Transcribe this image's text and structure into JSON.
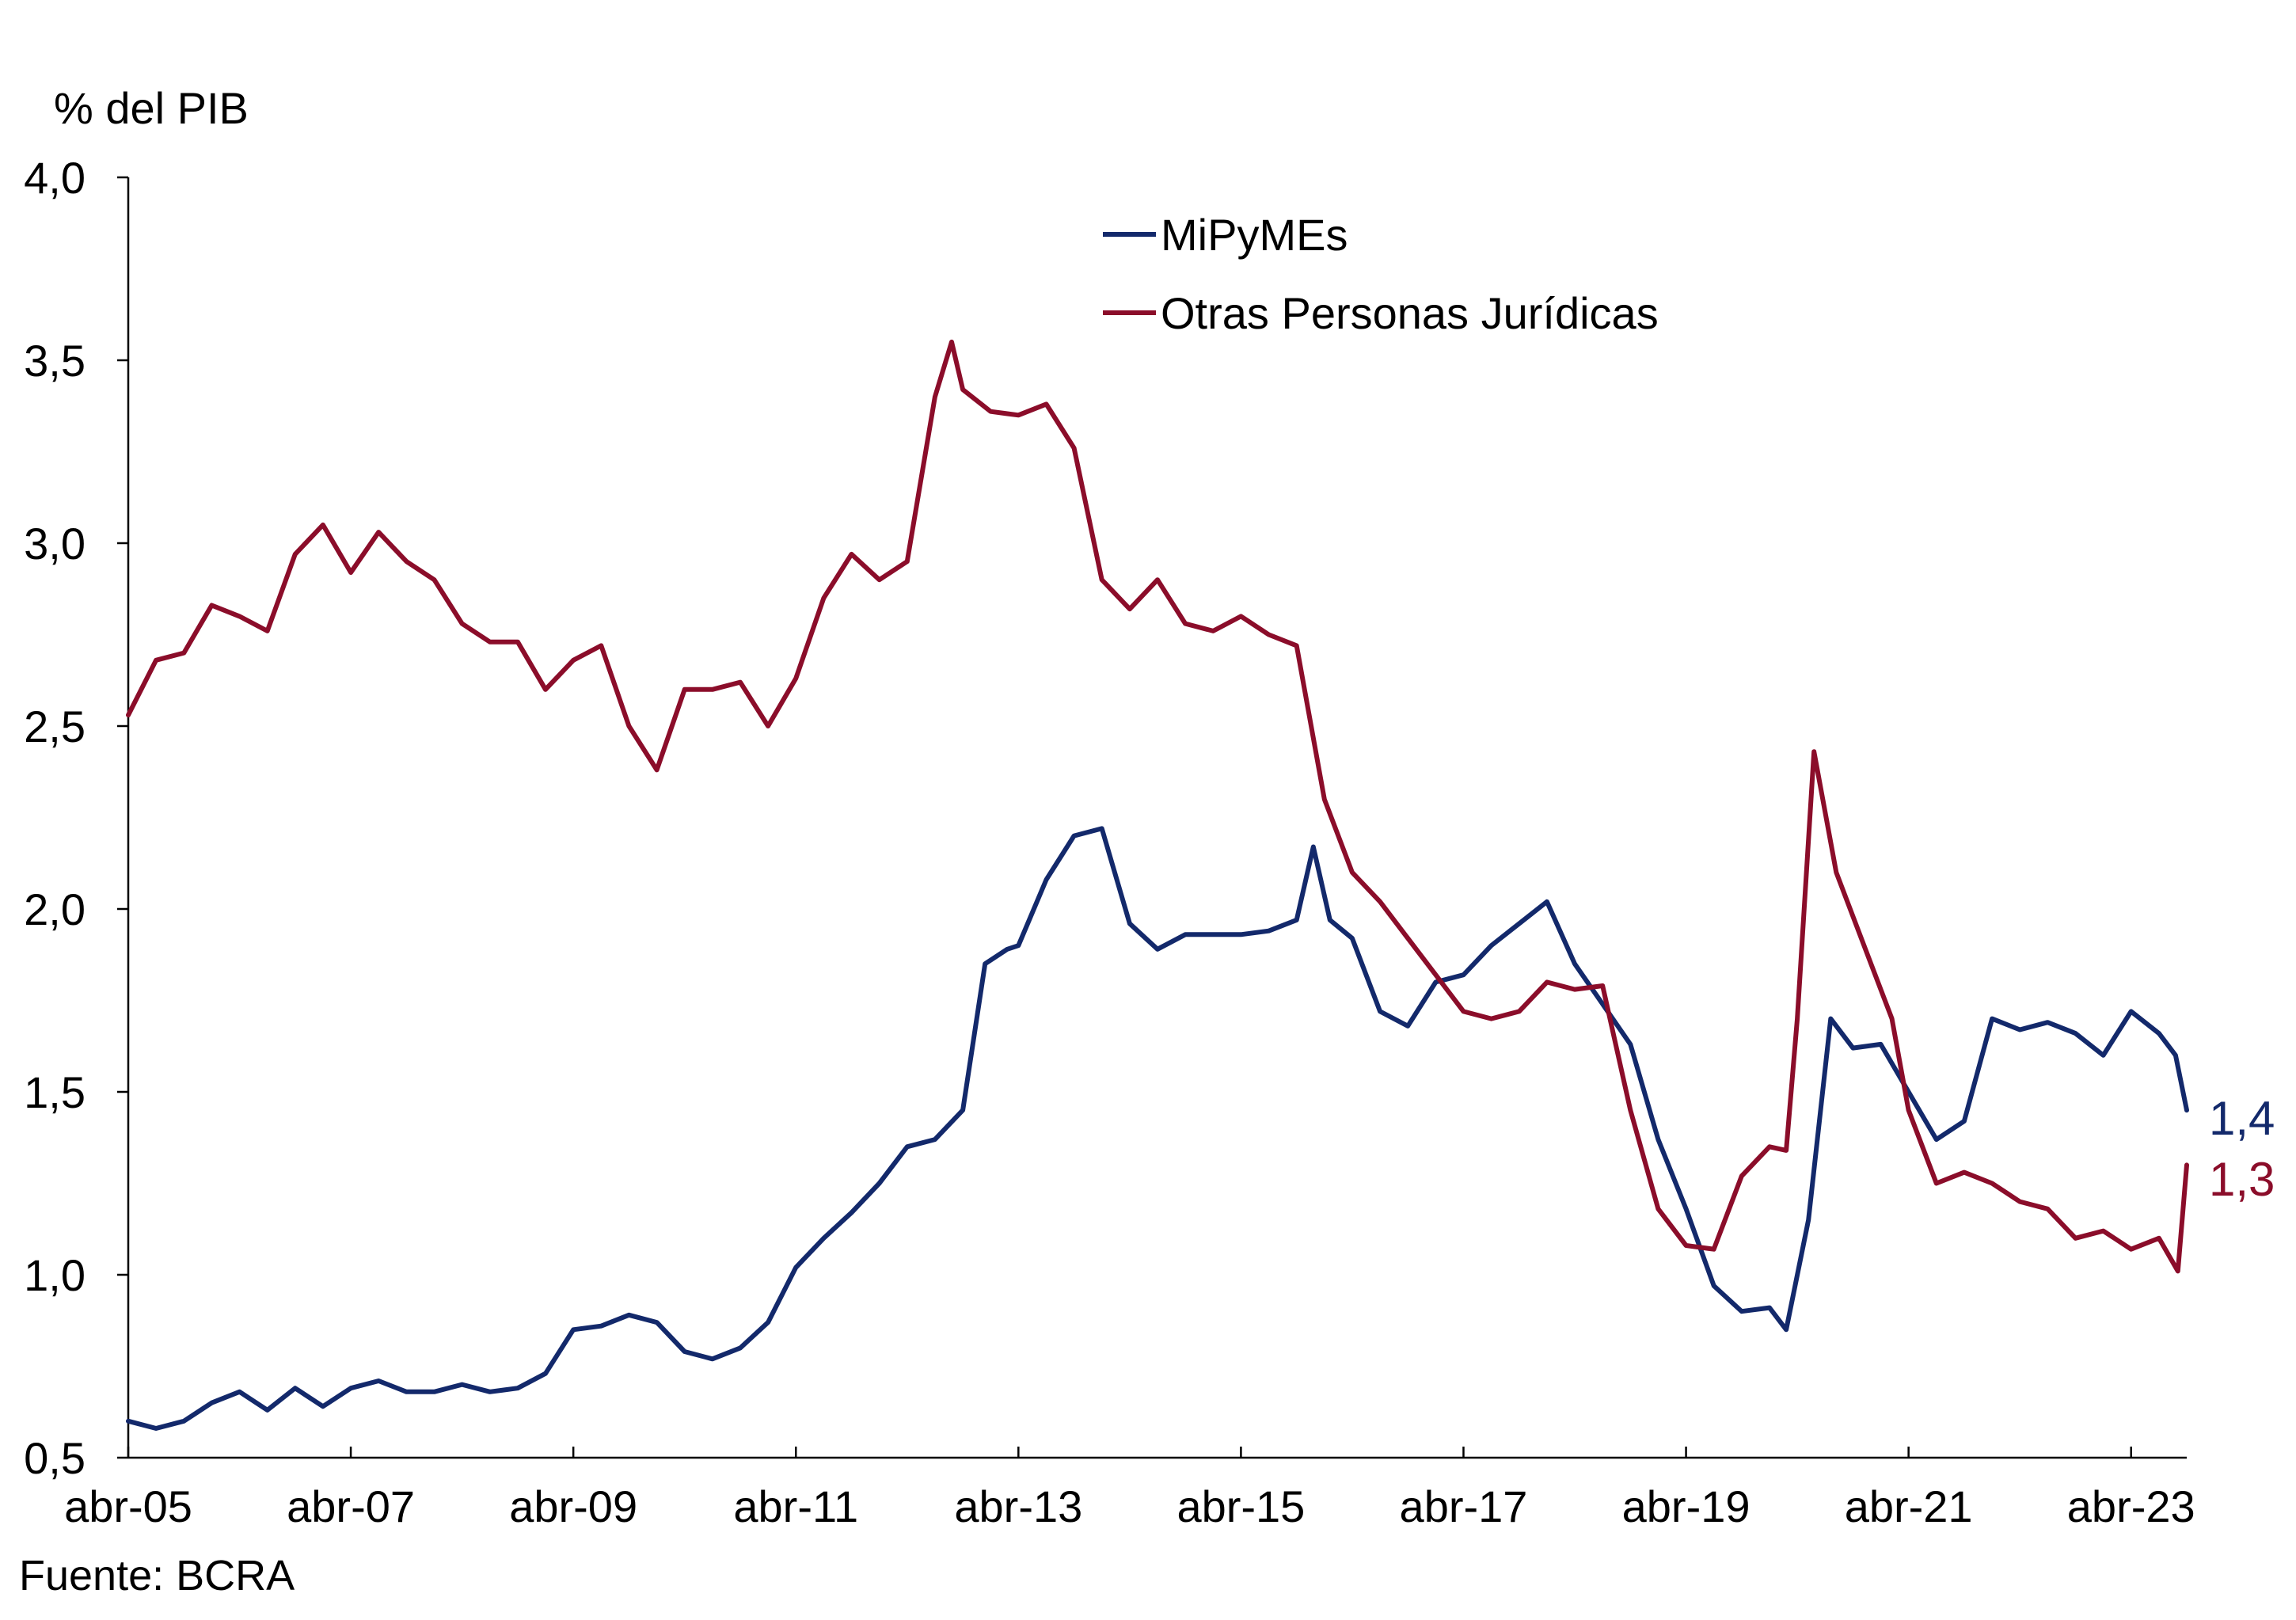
{
  "chart_data": {
    "type": "line",
    "ylabel": "% del PIB",
    "ylim": [
      0.5,
      4.0
    ],
    "y_ticks": [
      "0,5",
      "1,0",
      "1,5",
      "2,0",
      "2,5",
      "3,0",
      "3,5",
      "4,0"
    ],
    "y_tick_values": [
      0.5,
      1.0,
      1.5,
      2.0,
      2.5,
      3.0,
      3.5,
      4.0
    ],
    "x_ticks": [
      "abr-05",
      "abr-07",
      "abr-09",
      "abr-11",
      "abr-13",
      "abr-15",
      "abr-17",
      "abr-19",
      "abr-21",
      "abr-23"
    ],
    "x_tick_years": [
      2005,
      2007,
      2009,
      2011,
      2013,
      2015,
      2017,
      2019,
      2021,
      2023
    ],
    "x_range_years": [
      2005,
      2023.5
    ],
    "grid": false,
    "legend_position": "top-center",
    "series": [
      {
        "name": "MiPyMEs",
        "color": "#13296b",
        "end_label": "1,4",
        "points": [
          [
            2005.0,
            0.6
          ],
          [
            2005.25,
            0.58
          ],
          [
            2005.5,
            0.6
          ],
          [
            2005.75,
            0.65
          ],
          [
            2006.0,
            0.68
          ],
          [
            2006.25,
            0.63
          ],
          [
            2006.5,
            0.69
          ],
          [
            2006.75,
            0.64
          ],
          [
            2007.0,
            0.69
          ],
          [
            2007.25,
            0.71
          ],
          [
            2007.5,
            0.68
          ],
          [
            2007.75,
            0.68
          ],
          [
            2008.0,
            0.7
          ],
          [
            2008.25,
            0.68
          ],
          [
            2008.5,
            0.69
          ],
          [
            2008.75,
            0.73
          ],
          [
            2009.0,
            0.85
          ],
          [
            2009.25,
            0.86
          ],
          [
            2009.5,
            0.89
          ],
          [
            2009.75,
            0.87
          ],
          [
            2010.0,
            0.79
          ],
          [
            2010.25,
            0.77
          ],
          [
            2010.5,
            0.8
          ],
          [
            2010.75,
            0.87
          ],
          [
            2011.0,
            1.02
          ],
          [
            2011.25,
            1.1
          ],
          [
            2011.5,
            1.17
          ],
          [
            2011.75,
            1.25
          ],
          [
            2012.0,
            1.35
          ],
          [
            2012.25,
            1.37
          ],
          [
            2012.5,
            1.45
          ],
          [
            2012.7,
            1.85
          ],
          [
            2012.9,
            1.89
          ],
          [
            2013.0,
            1.9
          ],
          [
            2013.25,
            2.08
          ],
          [
            2013.5,
            2.2
          ],
          [
            2013.75,
            2.22
          ],
          [
            2014.0,
            1.96
          ],
          [
            2014.25,
            1.89
          ],
          [
            2014.5,
            1.93
          ],
          [
            2014.75,
            1.93
          ],
          [
            2015.0,
            1.93
          ],
          [
            2015.25,
            1.94
          ],
          [
            2015.5,
            1.97
          ],
          [
            2015.65,
            2.17
          ],
          [
            2015.8,
            1.97
          ],
          [
            2016.0,
            1.92
          ],
          [
            2016.25,
            1.72
          ],
          [
            2016.5,
            1.68
          ],
          [
            2016.75,
            1.8
          ],
          [
            2017.0,
            1.82
          ],
          [
            2017.25,
            1.9
          ],
          [
            2017.5,
            1.96
          ],
          [
            2017.75,
            2.02
          ],
          [
            2018.0,
            1.85
          ],
          [
            2018.25,
            1.74
          ],
          [
            2018.5,
            1.63
          ],
          [
            2018.75,
            1.37
          ],
          [
            2019.0,
            1.18
          ],
          [
            2019.25,
            0.97
          ],
          [
            2019.5,
            0.9
          ],
          [
            2019.75,
            0.91
          ],
          [
            2019.9,
            0.85
          ],
          [
            2020.1,
            1.15
          ],
          [
            2020.3,
            1.7
          ],
          [
            2020.5,
            1.62
          ],
          [
            2020.75,
            1.63
          ],
          [
            2021.0,
            1.5
          ],
          [
            2021.25,
            1.37
          ],
          [
            2021.5,
            1.42
          ],
          [
            2021.75,
            1.7
          ],
          [
            2022.0,
            1.67
          ],
          [
            2022.25,
            1.69
          ],
          [
            2022.5,
            1.66
          ],
          [
            2022.75,
            1.6
          ],
          [
            2023.0,
            1.72
          ],
          [
            2023.25,
            1.66
          ],
          [
            2023.4,
            1.6
          ],
          [
            2023.5,
            1.45
          ]
        ]
      },
      {
        "name": "Otras Personas Jurídicas",
        "color": "#8b0d2a",
        "end_label": "1,3",
        "points": [
          [
            2005.0,
            2.53
          ],
          [
            2005.25,
            2.68
          ],
          [
            2005.5,
            2.7
          ],
          [
            2005.75,
            2.83
          ],
          [
            2006.0,
            2.8
          ],
          [
            2006.25,
            2.76
          ],
          [
            2006.5,
            2.97
          ],
          [
            2006.75,
            3.05
          ],
          [
            2007.0,
            2.92
          ],
          [
            2007.25,
            3.03
          ],
          [
            2007.5,
            2.95
          ],
          [
            2007.75,
            2.9
          ],
          [
            2008.0,
            2.78
          ],
          [
            2008.25,
            2.73
          ],
          [
            2008.5,
            2.73
          ],
          [
            2008.75,
            2.6
          ],
          [
            2009.0,
            2.68
          ],
          [
            2009.25,
            2.72
          ],
          [
            2009.5,
            2.5
          ],
          [
            2009.75,
            2.38
          ],
          [
            2010.0,
            2.6
          ],
          [
            2010.25,
            2.6
          ],
          [
            2010.5,
            2.62
          ],
          [
            2010.75,
            2.5
          ],
          [
            2011.0,
            2.63
          ],
          [
            2011.25,
            2.85
          ],
          [
            2011.5,
            2.97
          ],
          [
            2011.75,
            2.9
          ],
          [
            2012.0,
            2.95
          ],
          [
            2012.25,
            3.4
          ],
          [
            2012.4,
            3.55
          ],
          [
            2012.5,
            3.42
          ],
          [
            2012.75,
            3.36
          ],
          [
            2013.0,
            3.35
          ],
          [
            2013.25,
            3.38
          ],
          [
            2013.5,
            3.26
          ],
          [
            2013.75,
            2.9
          ],
          [
            2014.0,
            2.82
          ],
          [
            2014.25,
            2.9
          ],
          [
            2014.5,
            2.78
          ],
          [
            2014.75,
            2.76
          ],
          [
            2015.0,
            2.8
          ],
          [
            2015.25,
            2.75
          ],
          [
            2015.5,
            2.72
          ],
          [
            2015.75,
            2.3
          ],
          [
            2016.0,
            2.1
          ],
          [
            2016.25,
            2.02
          ],
          [
            2016.5,
            1.92
          ],
          [
            2016.75,
            1.82
          ],
          [
            2017.0,
            1.72
          ],
          [
            2017.25,
            1.7
          ],
          [
            2017.5,
            1.72
          ],
          [
            2017.75,
            1.8
          ],
          [
            2018.0,
            1.78
          ],
          [
            2018.25,
            1.79
          ],
          [
            2018.5,
            1.45
          ],
          [
            2018.75,
            1.18
          ],
          [
            2019.0,
            1.08
          ],
          [
            2019.25,
            1.07
          ],
          [
            2019.5,
            1.27
          ],
          [
            2019.75,
            1.35
          ],
          [
            2019.9,
            1.34
          ],
          [
            2020.0,
            1.7
          ],
          [
            2020.15,
            2.43
          ],
          [
            2020.35,
            2.1
          ],
          [
            2020.6,
            1.9
          ],
          [
            2020.85,
            1.7
          ],
          [
            2021.0,
            1.45
          ],
          [
            2021.25,
            1.25
          ],
          [
            2021.5,
            1.28
          ],
          [
            2021.75,
            1.25
          ],
          [
            2022.0,
            1.2
          ],
          [
            2022.25,
            1.18
          ],
          [
            2022.5,
            1.1
          ],
          [
            2022.75,
            1.12
          ],
          [
            2023.0,
            1.07
          ],
          [
            2023.25,
            1.1
          ],
          [
            2023.42,
            1.01
          ],
          [
            2023.5,
            1.3
          ]
        ]
      }
    ]
  },
  "source": "Fuente: BCRA"
}
